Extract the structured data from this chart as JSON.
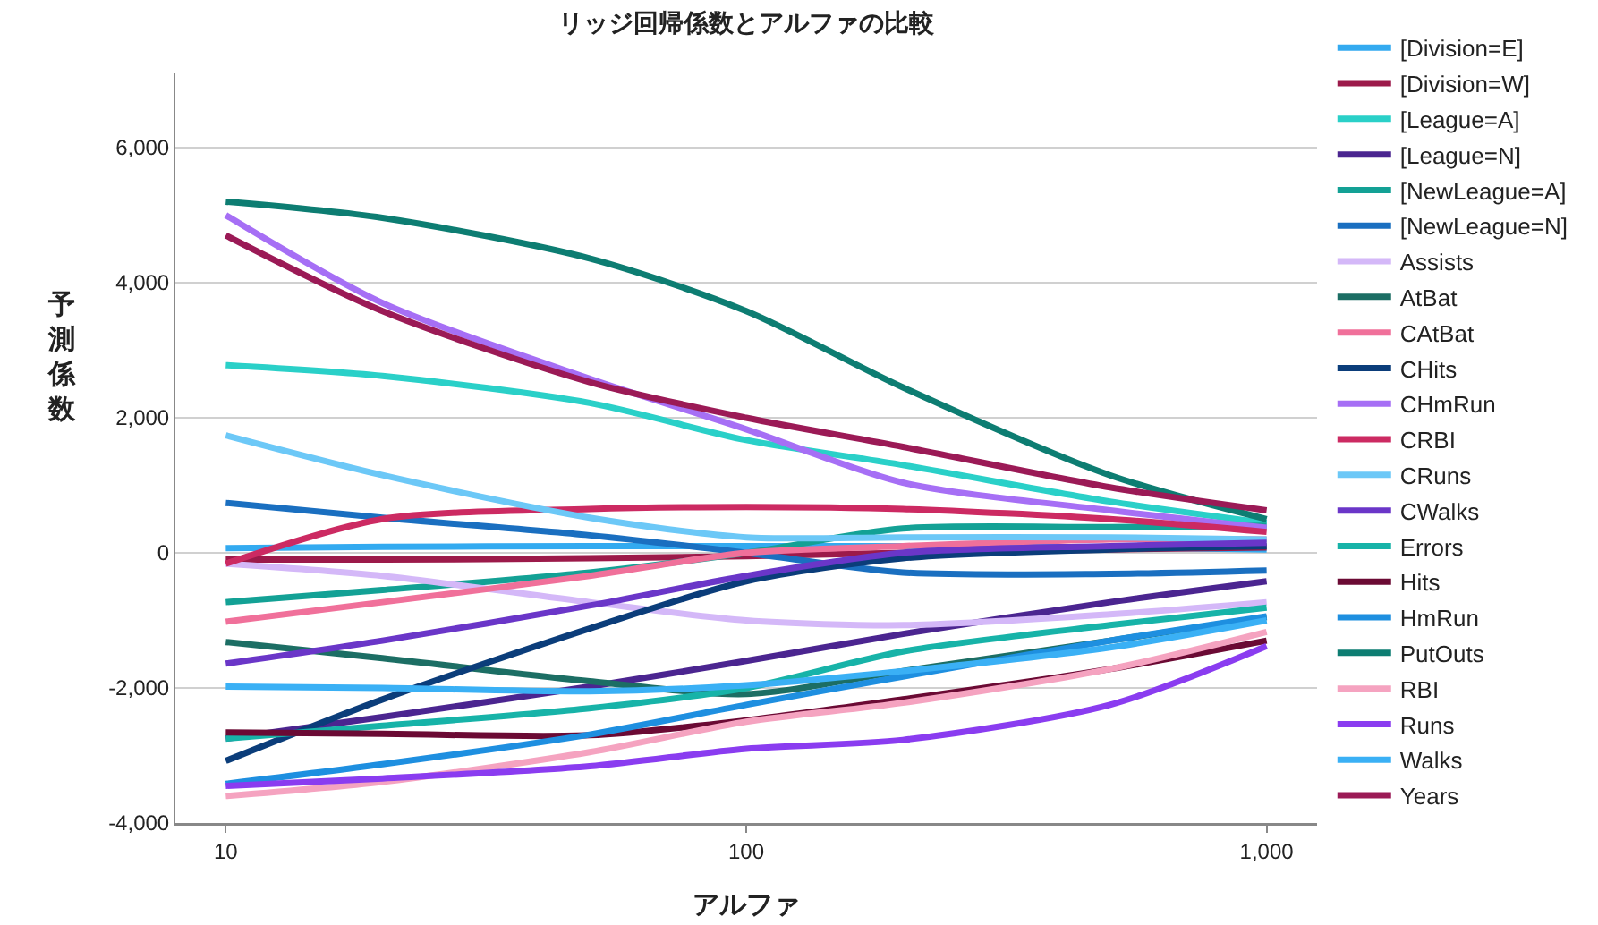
{
  "chart_data": {
    "type": "line",
    "title": "リッジ回帰係数とアルファの比較",
    "xlabel": "アルファ",
    "ylabel": "予測係数",
    "x": [
      10,
      20,
      50,
      100,
      200,
      500,
      1000
    ],
    "log": "x",
    "grid": "y",
    "legend": "right",
    "marker": "none",
    "line_style": "solid",
    "xlim": [
      8,
      1250
    ],
    "xticks": [
      10,
      100,
      {
        "value": 1000,
        "label": "1,000"
      }
    ],
    "ylim": [
      -4000,
      7100
    ],
    "yticks": [
      {
        "value": -4000,
        "label": "-4,000"
      },
      {
        "value": -2000,
        "label": "-2,000"
      },
      0,
      {
        "value": 2000,
        "label": "2,000"
      },
      {
        "value": 4000,
        "label": "4,000"
      },
      {
        "value": 6000,
        "label": "6,000"
      }
    ],
    "series": [
      {
        "name": "[Division=E]",
        "color": "#33aaf0",
        "values": [
          70,
          90,
          100,
          100,
          100,
          80,
          50
        ]
      },
      {
        "name": "[Division=W]",
        "color": "#9c1a4a",
        "values": [
          -100,
          -100,
          -80,
          -50,
          0,
          50,
          80
        ]
      },
      {
        "name": "[League=A]",
        "color": "#2ad0c8",
        "values": [
          2780,
          2620,
          2220,
          1670,
          1300,
          760,
          440
        ]
      },
      {
        "name": "[League=N]",
        "color": "#4b2590",
        "values": [
          -2750,
          -2430,
          -1980,
          -1600,
          -1200,
          -730,
          -420
        ]
      },
      {
        "name": "[NewLeague=A]",
        "color": "#13a195",
        "values": [
          -730,
          -550,
          -290,
          0,
          360,
          380,
          400
        ]
      },
      {
        "name": "[NewLeague=N]",
        "color": "#1a6fc0",
        "values": [
          740,
          520,
          260,
          0,
          -290,
          -310,
          -260
        ]
      },
      {
        "name": "Assists",
        "color": "#d4b8f8",
        "values": [
          -160,
          -340,
          -730,
          -1000,
          -1070,
          -910,
          -730
        ]
      },
      {
        "name": "AtBat",
        "color": "#1c6e64",
        "values": [
          -1320,
          -1560,
          -1900,
          -2090,
          -1750,
          -1300,
          -950
        ]
      },
      {
        "name": "CAtBat",
        "color": "#f0709a",
        "values": [
          -1020,
          -730,
          -340,
          0,
          100,
          200,
          200
        ]
      },
      {
        "name": "CHits",
        "color": "#0b3d7a",
        "values": [
          -3080,
          -2170,
          -1120,
          -420,
          -80,
          50,
          100
        ]
      },
      {
        "name": "CHmRun",
        "color": "#a66ff5",
        "values": [
          5000,
          3700,
          2580,
          1830,
          1040,
          630,
          370
        ]
      },
      {
        "name": "CRBI",
        "color": "#cc2a62",
        "values": [
          -160,
          500,
          650,
          680,
          650,
          500,
          310
        ]
      },
      {
        "name": "CRuns",
        "color": "#6cc8f7",
        "values": [
          1740,
          1150,
          520,
          230,
          230,
          230,
          200
        ]
      },
      {
        "name": "CWalks",
        "color": "#6a36c8",
        "values": [
          -1640,
          -1300,
          -780,
          -340,
          0,
          100,
          150
        ]
      },
      {
        "name": "Errors",
        "color": "#17b3a8",
        "values": [
          -2750,
          -2560,
          -2300,
          -2000,
          -1460,
          -1070,
          -810
        ]
      },
      {
        "name": "Hits",
        "color": "#6b0a34",
        "values": [
          -2660,
          -2680,
          -2700,
          -2480,
          -2170,
          -1720,
          -1300
        ]
      },
      {
        "name": "HmRun",
        "color": "#1e8fe0",
        "values": [
          -3420,
          -3130,
          -2690,
          -2250,
          -1830,
          -1300,
          -940
        ]
      },
      {
        "name": "PutOuts",
        "color": "#0d7d72",
        "values": [
          5200,
          4960,
          4360,
          3580,
          2450,
          1150,
          500
        ]
      },
      {
        "name": "RBI",
        "color": "#f5a3c0",
        "values": [
          -3600,
          -3390,
          -2950,
          -2500,
          -2220,
          -1720,
          -1170
        ]
      },
      {
        "name": "Runs",
        "color": "#8a3cf0",
        "values": [
          -3450,
          -3340,
          -3160,
          -2900,
          -2770,
          -2250,
          -1380
        ]
      },
      {
        "name": "Walks",
        "color": "#3ab0f5",
        "values": [
          -1980,
          -2000,
          -2050,
          -1960,
          -1750,
          -1400,
          -1000
        ]
      },
      {
        "name": "Years",
        "color": "#9b1a56",
        "values": [
          4700,
          3580,
          2530,
          2000,
          1570,
          970,
          630
        ]
      }
    ]
  }
}
